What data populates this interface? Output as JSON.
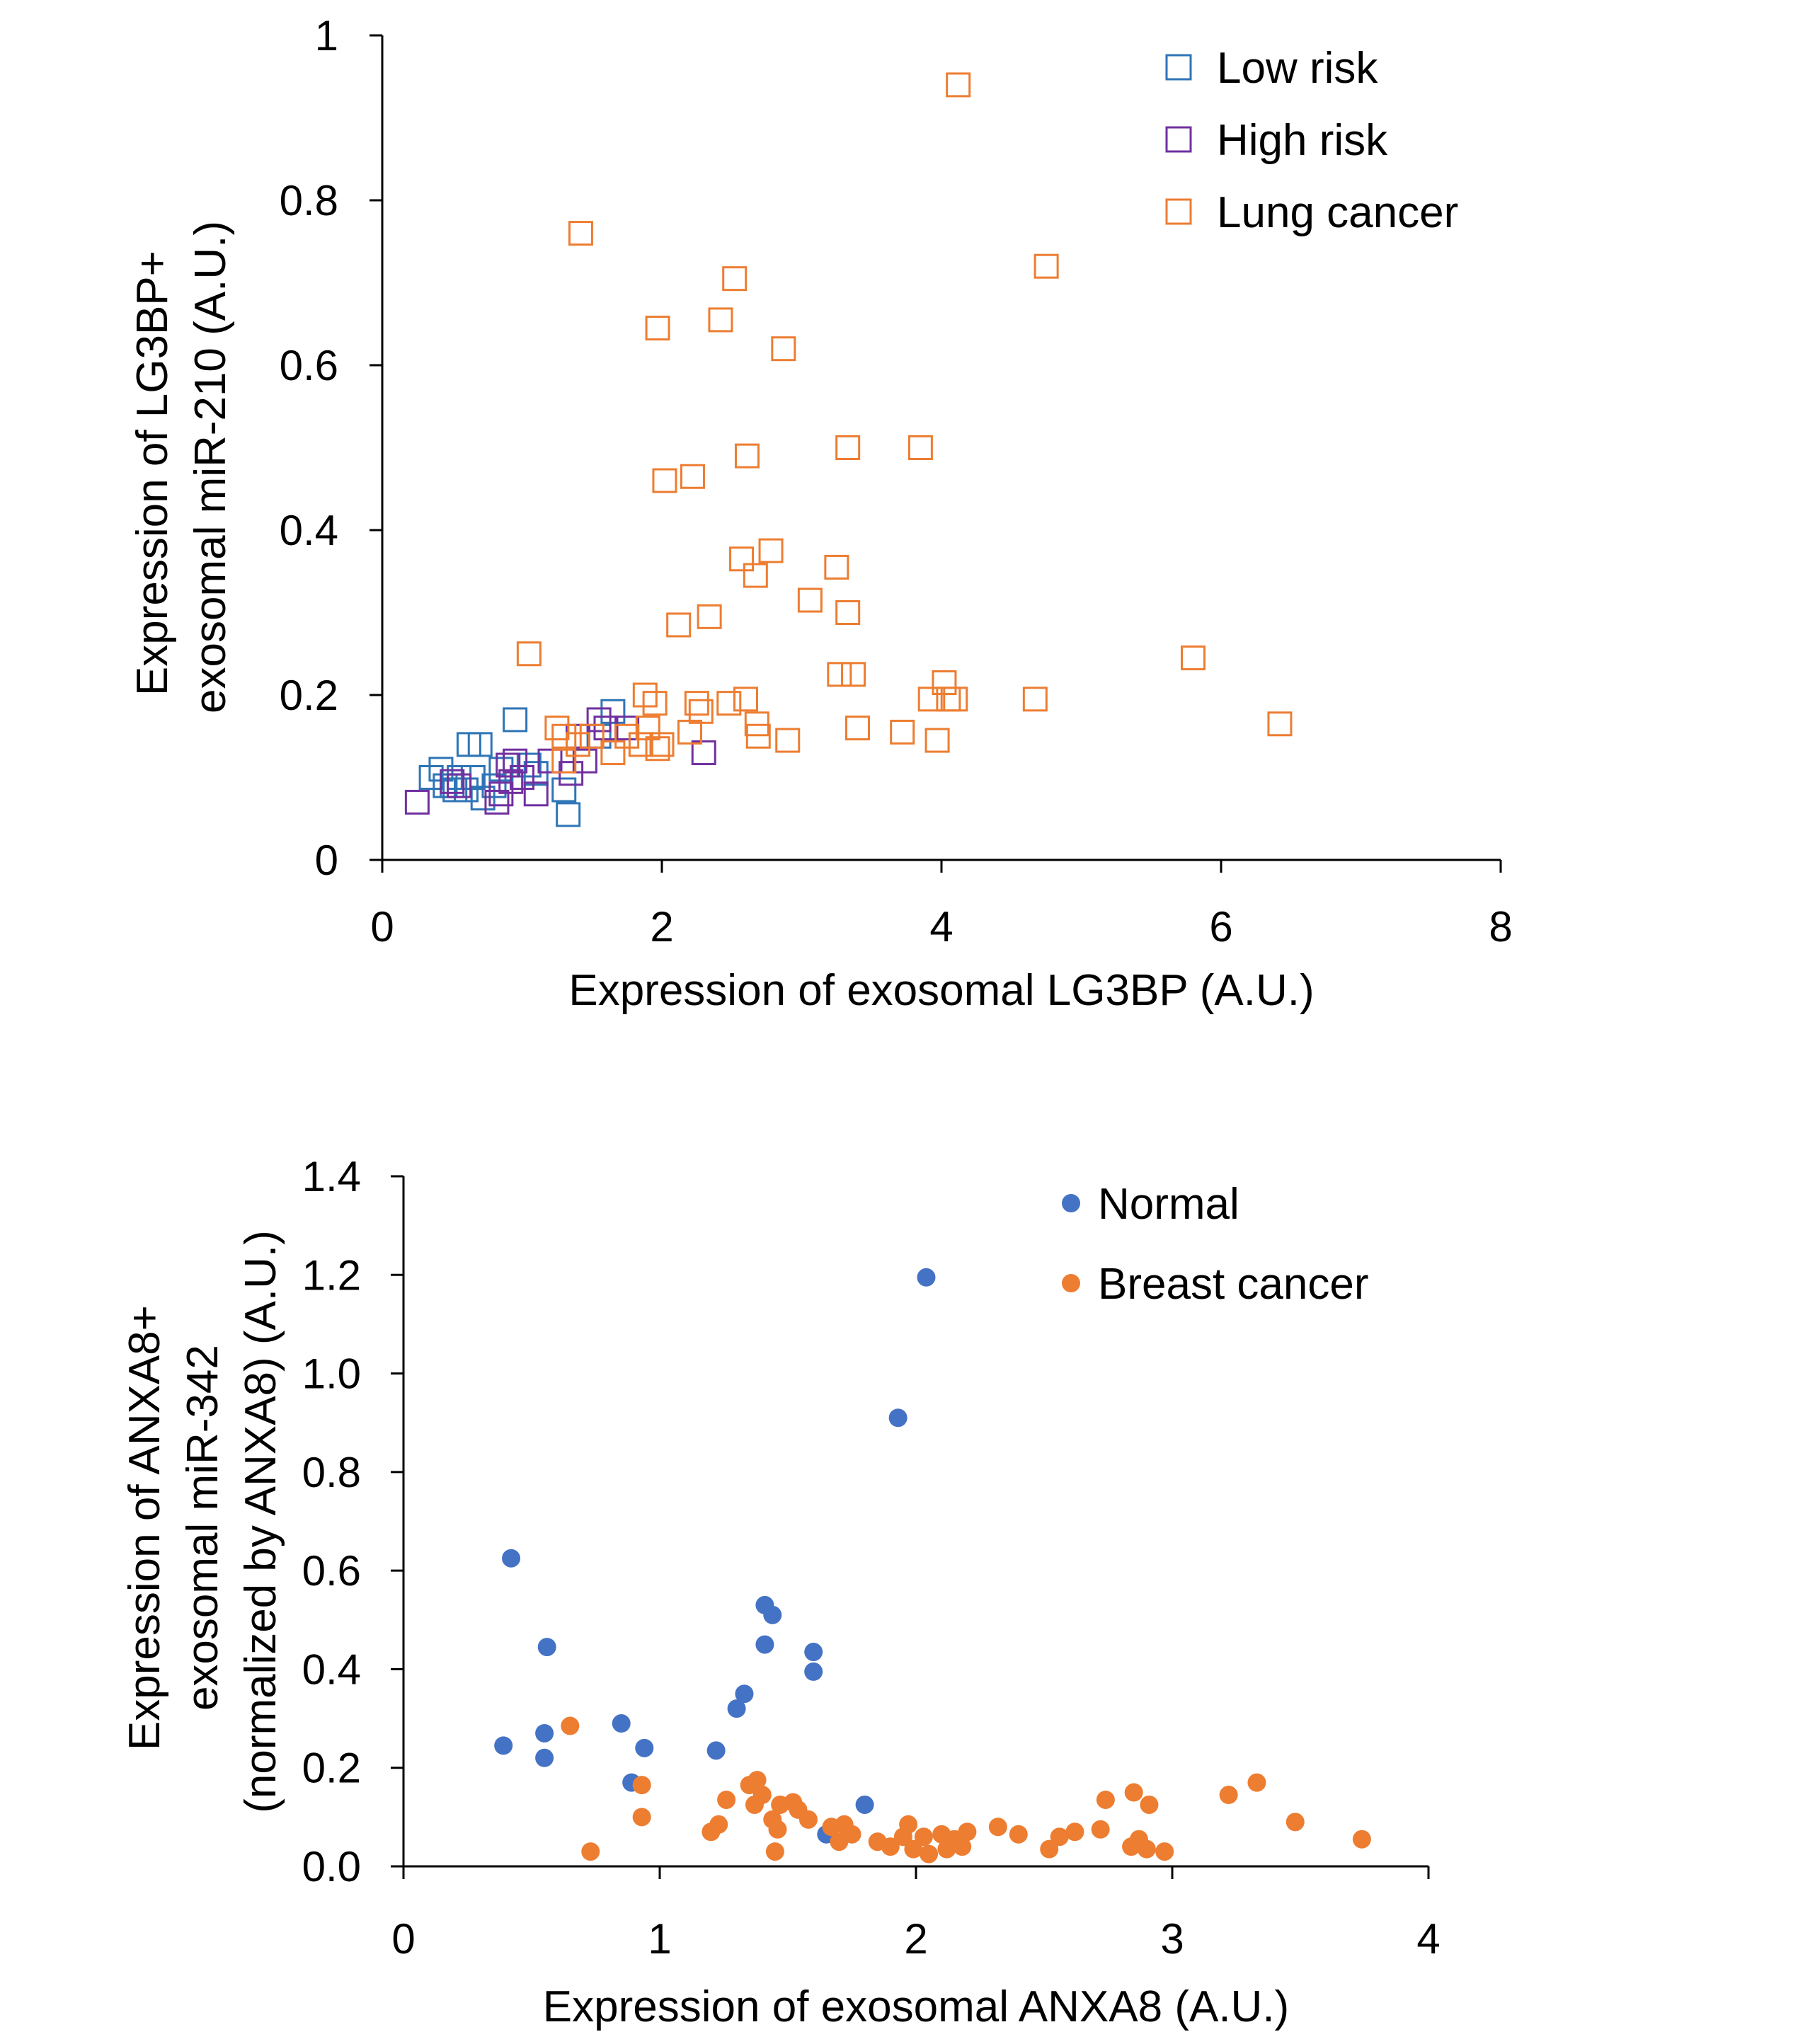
{
  "chart_data": [
    {
      "type": "scatter",
      "title": "",
      "xlabel": "Expression of exosomal LG3BP (A.U.)",
      "ylabel": [
        "Expression of LG3BP+",
        "exosomal miR-210 (A.U.)"
      ],
      "xlim": [
        0,
        8
      ],
      "ylim": [
        0,
        1
      ],
      "xticks": [
        0,
        2,
        4,
        6,
        8
      ],
      "yticks": [
        0,
        0.2,
        0.4,
        0.6,
        0.8,
        1
      ],
      "xtick_labels": [
        "0",
        "2",
        "4",
        "6",
        "8"
      ],
      "ytick_labels": [
        "0",
        "0.2",
        "0.4",
        "0.6",
        "0.8",
        "1"
      ],
      "marker": "open-square",
      "grid": false,
      "legend_position": "top-right",
      "series": [
        {
          "name": "Low risk",
          "color": "#2E75B6",
          "points": [
            [
              0.35,
              0.1
            ],
            [
              0.42,
              0.11
            ],
            [
              0.5,
              0.09
            ],
            [
              0.52,
              0.085
            ],
            [
              0.55,
              0.1
            ],
            [
              0.6,
              0.085
            ],
            [
              0.62,
              0.14
            ],
            [
              0.7,
              0.14
            ],
            [
              0.72,
              0.075
            ],
            [
              0.8,
              0.09
            ],
            [
              0.85,
              0.11
            ],
            [
              0.95,
              0.17
            ],
            [
              1.05,
              0.115
            ],
            [
              1.1,
              0.105
            ],
            [
              1.3,
              0.085
            ],
            [
              1.33,
              0.055
            ],
            [
              1.55,
              0.15
            ],
            [
              1.65,
              0.18
            ],
            [
              0.45,
              0.09
            ],
            [
              0.65,
              0.1
            ]
          ]
        },
        {
          "name": "High risk",
          "color": "#7030A0",
          "points": [
            [
              0.25,
              0.07
            ],
            [
              0.5,
              0.095
            ],
            [
              0.55,
              0.09
            ],
            [
              0.82,
              0.07
            ],
            [
              0.85,
              0.08
            ],
            [
              0.9,
              0.115
            ],
            [
              0.95,
              0.12
            ],
            [
              1.0,
              0.1
            ],
            [
              1.1,
              0.08
            ],
            [
              1.2,
              0.12
            ],
            [
              1.35,
              0.105
            ],
            [
              1.4,
              0.15
            ],
            [
              1.45,
              0.12
            ],
            [
              1.55,
              0.17
            ],
            [
              1.6,
              0.16
            ],
            [
              1.75,
              0.16
            ],
            [
              2.3,
              0.13
            ],
            [
              0.92,
              0.095
            ]
          ]
        },
        {
          "name": "Lung cancer",
          "color": "#ED7D31",
          "points": [
            [
              1.05,
              0.25
            ],
            [
              1.25,
              0.16
            ],
            [
              1.3,
              0.12
            ],
            [
              1.3,
              0.15
            ],
            [
              1.4,
              0.14
            ],
            [
              1.42,
              0.76
            ],
            [
              1.5,
              0.15
            ],
            [
              1.65,
              0.13
            ],
            [
              1.75,
              0.15
            ],
            [
              1.85,
              0.14
            ],
            [
              1.88,
              0.2
            ],
            [
              1.9,
              0.16
            ],
            [
              1.95,
              0.19
            ],
            [
              1.97,
              0.645
            ],
            [
              2.0,
              0.14
            ],
            [
              2.02,
              0.46
            ],
            [
              2.12,
              0.285
            ],
            [
              2.22,
              0.465
            ],
            [
              2.25,
              0.19
            ],
            [
              2.28,
              0.18
            ],
            [
              2.34,
              0.295
            ],
            [
              2.42,
              0.655
            ],
            [
              2.48,
              0.19
            ],
            [
              2.52,
              0.705
            ],
            [
              2.57,
              0.365
            ],
            [
              2.6,
              0.195
            ],
            [
              2.61,
              0.49
            ],
            [
              2.67,
              0.345
            ],
            [
              2.68,
              0.165
            ],
            [
              2.69,
              0.15
            ],
            [
              2.78,
              0.375
            ],
            [
              2.87,
              0.62
            ],
            [
              2.9,
              0.145
            ],
            [
              3.06,
              0.315
            ],
            [
              3.25,
              0.355
            ],
            [
              3.27,
              0.225
            ],
            [
              3.33,
              0.3
            ],
            [
              3.33,
              0.5
            ],
            [
              3.37,
              0.225
            ],
            [
              3.4,
              0.16
            ],
            [
              3.72,
              0.155
            ],
            [
              3.85,
              0.5
            ],
            [
              3.92,
              0.195
            ],
            [
              3.97,
              0.145
            ],
            [
              4.02,
              0.215
            ],
            [
              4.05,
              0.195
            ],
            [
              4.1,
              0.195
            ],
            [
              4.12,
              0.94
            ],
            [
              4.67,
              0.195
            ],
            [
              4.75,
              0.72
            ],
            [
              5.8,
              0.245
            ],
            [
              6.42,
              0.165
            ],
            [
              2.2,
              0.155
            ],
            [
              1.97,
              0.135
            ]
          ]
        }
      ]
    },
    {
      "type": "scatter",
      "title": "",
      "xlabel": "Expression of exosomal ANXA8 (A.U.)",
      "ylabel": [
        "Expression of ANXA8+",
        "exosomal miR-342",
        "(normalized by ANXA8) (A.U.)"
      ],
      "xlim": [
        0,
        4
      ],
      "ylim": [
        0,
        1.4
      ],
      "xticks": [
        0,
        1,
        2,
        3,
        4
      ],
      "yticks": [
        0,
        0.2,
        0.4,
        0.6,
        0.8,
        1.0,
        1.2,
        1.4
      ],
      "xtick_labels": [
        "0",
        "1",
        "2",
        "3",
        "4"
      ],
      "ytick_labels": [
        "0.0",
        "0.2",
        "0.4",
        "0.6",
        "0.8",
        "1.0",
        "1.2",
        "1.4"
      ],
      "marker": "filled-circle",
      "grid": false,
      "legend_position": "top-right",
      "series": [
        {
          "name": "Normal",
          "color": "#4472C4",
          "points": [
            [
              0.39,
              0.245
            ],
            [
              0.42,
              0.625
            ],
            [
              0.55,
              0.22
            ],
            [
              0.55,
              0.27
            ],
            [
              0.56,
              0.445
            ],
            [
              0.85,
              0.29
            ],
            [
              0.89,
              0.17
            ],
            [
              0.94,
              0.24
            ],
            [
              1.22,
              0.235
            ],
            [
              1.3,
              0.32
            ],
            [
              1.33,
              0.35
            ],
            [
              1.41,
              0.53
            ],
            [
              1.41,
              0.45
            ],
            [
              1.44,
              0.51
            ],
            [
              1.6,
              0.435
            ],
            [
              1.6,
              0.395
            ],
            [
              1.65,
              0.065
            ],
            [
              1.8,
              0.125
            ],
            [
              1.93,
              0.91
            ],
            [
              2.04,
              1.195
            ]
          ]
        },
        {
          "name": "Breast cancer",
          "color": "#ED7D31",
          "points": [
            [
              0.65,
              0.285
            ],
            [
              0.73,
              0.03
            ],
            [
              0.93,
              0.165
            ],
            [
              0.93,
              0.1
            ],
            [
              1.2,
              0.07
            ],
            [
              1.23,
              0.085
            ],
            [
              1.26,
              0.135
            ],
            [
              1.35,
              0.165
            ],
            [
              1.37,
              0.125
            ],
            [
              1.38,
              0.175
            ],
            [
              1.4,
              0.145
            ],
            [
              1.44,
              0.095
            ],
            [
              1.45,
              0.03
            ],
            [
              1.46,
              0.075
            ],
            [
              1.47,
              0.125
            ],
            [
              1.52,
              0.13
            ],
            [
              1.54,
              0.115
            ],
            [
              1.58,
              0.095
            ],
            [
              1.67,
              0.08
            ],
            [
              1.7,
              0.05
            ],
            [
              1.72,
              0.085
            ],
            [
              1.75,
              0.065
            ],
            [
              1.85,
              0.05
            ],
            [
              1.9,
              0.04
            ],
            [
              1.95,
              0.06
            ],
            [
              1.97,
              0.085
            ],
            [
              1.99,
              0.035
            ],
            [
              2.03,
              0.06
            ],
            [
              2.05,
              0.025
            ],
            [
              2.1,
              0.065
            ],
            [
              2.12,
              0.035
            ],
            [
              2.15,
              0.055
            ],
            [
              2.18,
              0.04
            ],
            [
              2.2,
              0.07
            ],
            [
              2.32,
              0.08
            ],
            [
              2.4,
              0.065
            ],
            [
              2.52,
              0.035
            ],
            [
              2.56,
              0.06
            ],
            [
              2.62,
              0.07
            ],
            [
              2.72,
              0.075
            ],
            [
              2.74,
              0.135
            ],
            [
              2.84,
              0.04
            ],
            [
              2.85,
              0.15
            ],
            [
              2.87,
              0.055
            ],
            [
              2.9,
              0.035
            ],
            [
              2.91,
              0.125
            ],
            [
              2.97,
              0.03
            ],
            [
              3.22,
              0.145
            ],
            [
              3.33,
              0.17
            ],
            [
              3.48,
              0.09
            ],
            [
              3.74,
              0.055
            ]
          ]
        }
      ]
    }
  ]
}
